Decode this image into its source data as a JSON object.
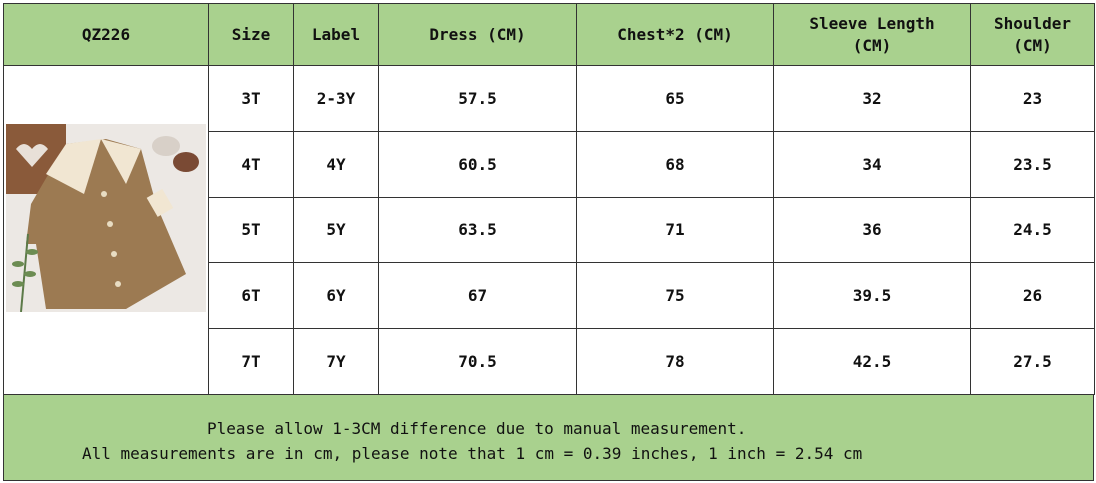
{
  "header": {
    "cells": [
      "QZ226",
      "Size",
      "Label",
      "Dress (CM)",
      "Chest*2 (CM)",
      [
        "Sleeve Length",
        "(CM)"
      ],
      [
        "Shoulder",
        "(CM)"
      ]
    ]
  },
  "table": {
    "rows": [
      [
        "3T",
        "2-3Y",
        "57.5",
        "65",
        "32",
        "23"
      ],
      [
        "4T",
        "4Y",
        "60.5",
        "68",
        "34",
        "23.5"
      ],
      [
        "5T",
        "5Y",
        "63.5",
        "71",
        "36",
        "24.5"
      ],
      [
        "6T",
        "6Y",
        "67",
        "75",
        "39.5",
        "26"
      ],
      [
        "7T",
        "7Y",
        "70.5",
        "78",
        "42.5",
        "27.5"
      ]
    ]
  },
  "note": {
    "lines": [
      "Please allow 1-3CM difference due to manual measurement.",
      "All measurements are in cm, please note that 1 cm = 0.39 inches, 1 inch = 2.54 cm"
    ]
  }
}
